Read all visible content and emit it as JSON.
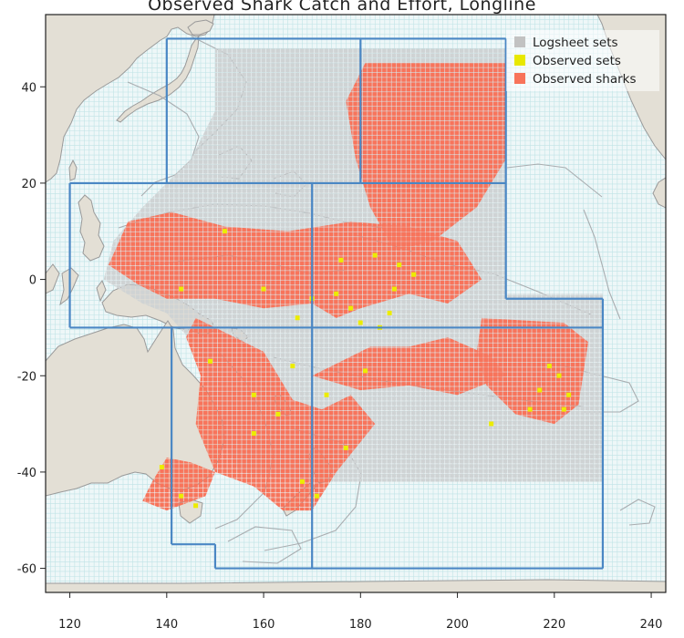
{
  "title": "Observed Shark Catch and Effort, Longline",
  "map": {
    "lon_range": [
      115,
      243
    ],
    "lat_range": [
      -65,
      55
    ],
    "x_ticks": [
      120,
      140,
      160,
      180,
      200,
      220,
      240
    ],
    "y_ticks": [
      40,
      20,
      0,
      -20,
      -40,
      -60
    ],
    "colors": {
      "ocean": "#eef7f8",
      "gridline": "#bfe3e6",
      "land": "#e3dfd5",
      "coast": "#9a9a9a",
      "boundary_lines": "#a9adb0",
      "logsheet": "#cfd3d4",
      "observed_sets": "#ecec00",
      "observed_sharks": "#f8745b",
      "regions": "#4a87c4"
    }
  },
  "legend": [
    {
      "label": "Logsheet sets",
      "color": "#c2c2c2"
    },
    {
      "label": "Observed sets",
      "color": "#e8e800"
    },
    {
      "label": "Observed sharks",
      "color": "#f8735a"
    }
  ],
  "region_lines": [
    [
      [
        120,
        20
      ],
      [
        120,
        -10
      ]
    ],
    [
      [
        120,
        20
      ],
      [
        180,
        20
      ]
    ],
    [
      [
        140,
        50
      ],
      [
        210,
        50
      ]
    ],
    [
      [
        140,
        50
      ],
      [
        140,
        20
      ]
    ],
    [
      [
        180,
        50
      ],
      [
        180,
        20
      ]
    ],
    [
      [
        210,
        50
      ],
      [
        210,
        -4
      ]
    ],
    [
      [
        180,
        20
      ],
      [
        210,
        20
      ]
    ],
    [
      [
        170,
        20
      ],
      [
        170,
        -60
      ]
    ],
    [
      [
        210,
        -4
      ],
      [
        230,
        -4
      ]
    ],
    [
      [
        230,
        -4
      ],
      [
        230,
        -60
      ]
    ],
    [
      [
        120,
        -10
      ],
      [
        230,
        -10
      ]
    ],
    [
      [
        141,
        -10
      ],
      [
        141,
        -55
      ]
    ],
    [
      [
        141,
        -55
      ],
      [
        150,
        -55
      ]
    ],
    [
      [
        150,
        -55
      ],
      [
        150,
        -60
      ]
    ],
    [
      [
        150,
        -60
      ],
      [
        230,
        -60
      ]
    ]
  ],
  "effort": {
    "logsheet_areas": [
      [
        [
          150,
          48
        ],
        [
          210,
          48
        ],
        [
          210,
          -3
        ],
        [
          230,
          -3
        ],
        [
          230,
          -42
        ],
        [
          200,
          -42
        ],
        [
          170,
          -42
        ],
        [
          155,
          -40
        ],
        [
          150,
          -30
        ],
        [
          147,
          -15
        ],
        [
          140,
          -7
        ],
        [
          135,
          -5
        ],
        [
          127,
          0
        ],
        [
          129,
          8
        ],
        [
          135,
          15
        ],
        [
          145,
          25
        ],
        [
          150,
          35
        ],
        [
          150,
          48
        ]
      ]
    ],
    "observed_sharks_areas": [
      [
        [
          181,
          45
        ],
        [
          210,
          45
        ],
        [
          210,
          25
        ],
        [
          204,
          15
        ],
        [
          195,
          8
        ],
        [
          187,
          6
        ],
        [
          182,
          15
        ],
        [
          179,
          25
        ],
        [
          177,
          37
        ]
      ],
      [
        [
          128,
          3
        ],
        [
          132,
          12
        ],
        [
          141,
          14
        ],
        [
          152,
          11
        ],
        [
          165,
          10
        ],
        [
          178,
          12
        ],
        [
          190,
          11
        ],
        [
          200,
          8
        ],
        [
          205,
          0
        ],
        [
          198,
          -5
        ],
        [
          190,
          -3
        ],
        [
          180,
          -6
        ],
        [
          175,
          -8
        ],
        [
          170,
          -5
        ],
        [
          160,
          -6
        ],
        [
          150,
          -4
        ],
        [
          140,
          -4
        ],
        [
          134,
          -1
        ]
      ],
      [
        [
          146,
          -8
        ],
        [
          154,
          -12
        ],
        [
          160,
          -15
        ],
        [
          166,
          -25
        ],
        [
          172,
          -27
        ],
        [
          178,
          -24
        ],
        [
          183,
          -30
        ],
        [
          175,
          -40
        ],
        [
          170,
          -48
        ],
        [
          164,
          -48
        ],
        [
          158,
          -43
        ],
        [
          150,
          -40
        ],
        [
          146,
          -30
        ],
        [
          147,
          -20
        ],
        [
          144,
          -12
        ]
      ],
      [
        [
          137,
          -42
        ],
        [
          140,
          -37
        ],
        [
          145,
          -38
        ],
        [
          150,
          -40
        ],
        [
          148,
          -45
        ],
        [
          140,
          -48
        ],
        [
          135,
          -46
        ]
      ],
      [
        [
          170,
          -20
        ],
        [
          182,
          -14
        ],
        [
          190,
          -14
        ],
        [
          198,
          -12
        ],
        [
          207,
          -16
        ],
        [
          210,
          -20
        ],
        [
          200,
          -24
        ],
        [
          190,
          -22
        ],
        [
          180,
          -23
        ]
      ],
      [
        [
          205,
          -8
        ],
        [
          222,
          -9
        ],
        [
          227,
          -13
        ],
        [
          225,
          -26
        ],
        [
          220,
          -30
        ],
        [
          212,
          -28
        ],
        [
          206,
          -22
        ],
        [
          204,
          -15
        ]
      ]
    ],
    "observed_sets_points": [
      [
        143,
        -2
      ],
      [
        152,
        10
      ],
      [
        176,
        4
      ],
      [
        183,
        5
      ],
      [
        188,
        3
      ],
      [
        191,
        1
      ],
      [
        187,
        -2
      ],
      [
        178,
        -6
      ],
      [
        175,
        -3
      ],
      [
        170,
        -4
      ],
      [
        167,
        -8
      ],
      [
        180,
        -9
      ],
      [
        184,
        -10
      ],
      [
        186,
        -7
      ],
      [
        160,
        -2
      ],
      [
        158,
        -24
      ],
      [
        163,
        -28
      ],
      [
        177,
        -35
      ],
      [
        168,
        -42
      ],
      [
        171,
        -45
      ],
      [
        143,
        -45
      ],
      [
        146,
        -47
      ],
      [
        217,
        -23
      ],
      [
        219,
        -18
      ],
      [
        221,
        -20
      ],
      [
        223,
        -24
      ],
      [
        215,
        -27
      ],
      [
        222,
        -27
      ],
      [
        207,
        -30
      ],
      [
        181,
        -19
      ],
      [
        173,
        -24
      ],
      [
        139,
        -39
      ],
      [
        149,
        -17
      ],
      [
        166,
        -18
      ],
      [
        158,
        -32
      ]
    ]
  }
}
